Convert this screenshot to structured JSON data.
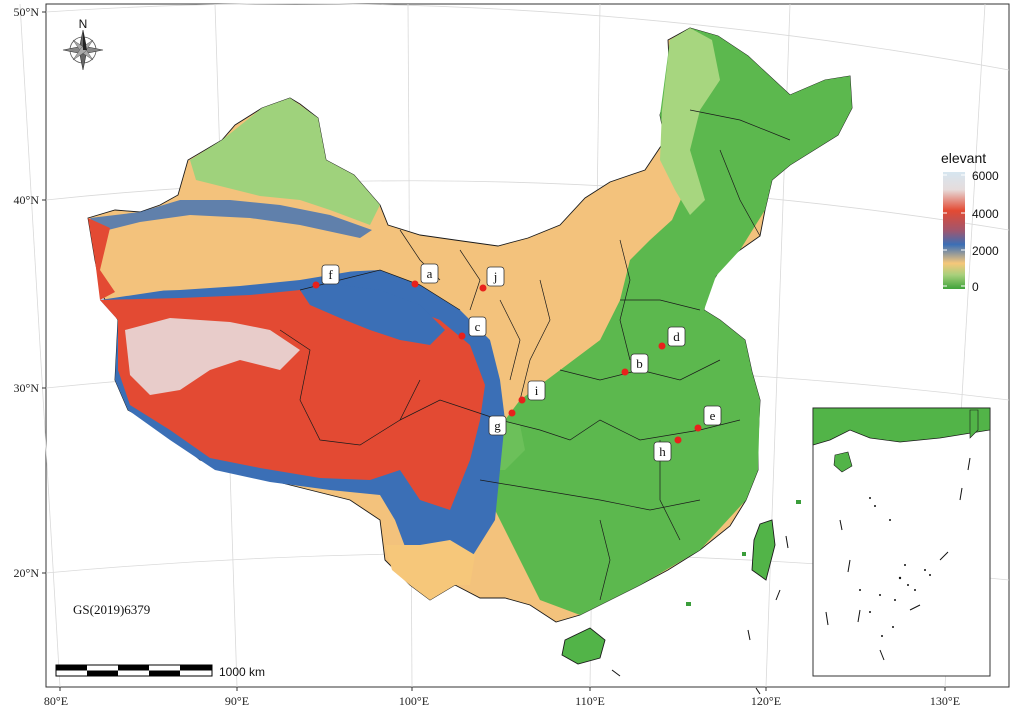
{
  "axes": {
    "x_ticks": [
      "80°E",
      "90°E",
      "100°E",
      "110°E",
      "120°E",
      "130°E"
    ],
    "y_ticks": [
      "50°N",
      "40°N",
      "30°N",
      "20°N"
    ]
  },
  "north_arrow": {
    "label": "N"
  },
  "legend": {
    "title": "elevant",
    "ticks": [
      "6000",
      "4000",
      "2000",
      "0"
    ],
    "colors": [
      "#d6e6f0",
      "#e0e0e0",
      "#e34a33",
      "#3b6fb6",
      "#f6c77a",
      "#52b448"
    ]
  },
  "sites": [
    {
      "id": "a",
      "label": "a"
    },
    {
      "id": "b",
      "label": "b"
    },
    {
      "id": "c",
      "label": "c"
    },
    {
      "id": "d",
      "label": "d"
    },
    {
      "id": "e",
      "label": "e"
    },
    {
      "id": "f",
      "label": "f"
    },
    {
      "id": "g",
      "label": "g"
    },
    {
      "id": "h",
      "label": "h"
    },
    {
      "id": "i",
      "label": "i"
    },
    {
      "id": "j",
      "label": "j"
    }
  ],
  "map_approval_number": "GS(2019)6379",
  "scale_bar": {
    "label": "1000 km"
  },
  "colors": {
    "site_marker": "#e8211c",
    "lowland_green": "#52b448",
    "highland_red": "#e34a33",
    "mid_blue": "#3b6fb6",
    "plains_tan": "#f3c27c",
    "border": "#111111"
  }
}
